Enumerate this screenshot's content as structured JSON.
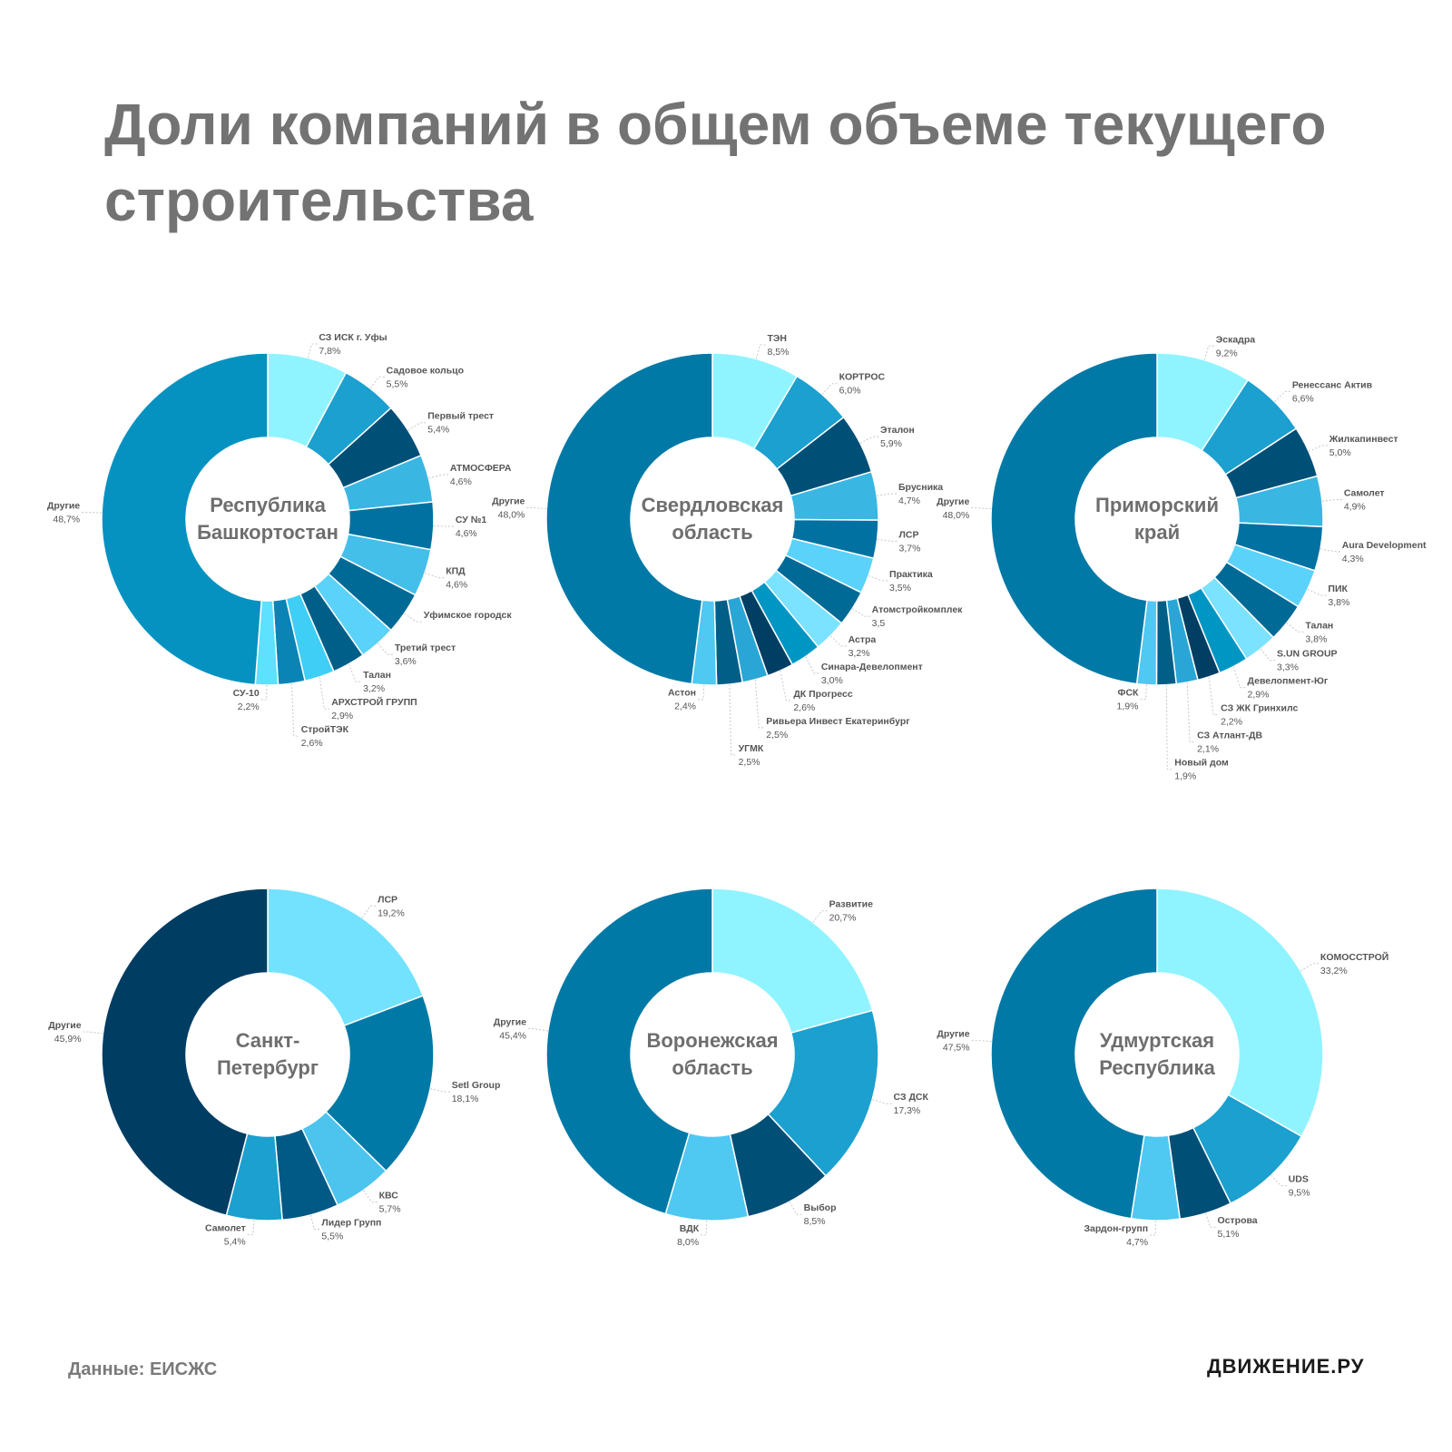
{
  "page": {
    "title": "Доли компаний в общем объеме текущего строительства",
    "source": "Данные: ЕИСЖС",
    "brand": "ДВИЖЕНИЕ.РУ"
  },
  "chart_data": [
    {
      "type": "pie",
      "title": "Республика Башкортостан",
      "slices": [
        {
          "label": "СЗ ИСК г. Уфы",
          "value": 7.8,
          "text": "7,8%",
          "color": "#8ff4ff"
        },
        {
          "label": "Садовое кольцо",
          "value": 5.5,
          "text": "5,5%",
          "color": "#1ba0cf"
        },
        {
          "label": "Первый трест",
          "value": 5.4,
          "text": "5,4%",
          "color": "#004f77"
        },
        {
          "label": "АТМОСФЕРА",
          "value": 4.6,
          "text": "4,6%",
          "color": "#3ab6e3"
        },
        {
          "label": "СУ №1",
          "value": 4.6,
          "text": "4,6%",
          "color": "#0071a0"
        },
        {
          "label": "КПД",
          "value": 4.6,
          "text": "4,6%",
          "color": "#44bfea"
        },
        {
          "label": "Уфимское городск",
          "value": 4.1,
          "text": "",
          "color": "#006a96"
        },
        {
          "label": "Третий трест",
          "value": 3.6,
          "text": "3,6%",
          "color": "#5bd2fa"
        },
        {
          "label": "Талан",
          "value": 3.2,
          "text": "3,2%",
          "color": "#005f89"
        },
        {
          "label": "АРХСТРОЙ ГРУПП",
          "value": 2.9,
          "text": "2,9%",
          "color": "#3fcef6"
        },
        {
          "label": "СтройТЭК",
          "value": 2.6,
          "text": "2,6%",
          "color": "#0a84b5"
        },
        {
          "label": "СУ-10",
          "value": 2.2,
          "text": "2,2%",
          "color": "#5ee0ff"
        },
        {
          "label": "Другие",
          "value": 48.7,
          "text": "48,7%",
          "color": "#0592c0"
        }
      ]
    },
    {
      "type": "pie",
      "title": "Свердловская область",
      "slices": [
        {
          "label": "ТЭН",
          "value": 8.5,
          "text": "8,5%",
          "color": "#8ff4ff"
        },
        {
          "label": "КОРТРОС",
          "value": 6.0,
          "text": "6,0%",
          "color": "#1ba0cf"
        },
        {
          "label": "Эталон",
          "value": 5.9,
          "text": "5,9%",
          "color": "#004f77"
        },
        {
          "label": "Брусника",
          "value": 4.7,
          "text": "4,7%",
          "color": "#3ab6e3"
        },
        {
          "label": "ЛСР",
          "value": 3.7,
          "text": "3,7%",
          "color": "#0071a0"
        },
        {
          "label": "Практика",
          "value": 3.5,
          "text": "3,5%",
          "color": "#5bd2fa"
        },
        {
          "label": "Атомстройкомплек",
          "value": 3.5,
          "text": "3,5",
          "color": "#006a96"
        },
        {
          "label": "Астра",
          "value": 3.2,
          "text": "3,2%",
          "color": "#7be2ff"
        },
        {
          "label": "Синара-Девелопмент",
          "value": 3.0,
          "text": "3,0%",
          "color": "#0096c4"
        },
        {
          "label": "ДК Прогресс",
          "value": 2.6,
          "text": "2,6%",
          "color": "#003f63"
        },
        {
          "label": "Ривьера Инвест Екатеринбург",
          "value": 2.5,
          "text": "2,5%",
          "color": "#2aa6d6"
        },
        {
          "label": "УГМК",
          "value": 2.5,
          "text": "2,5%",
          "color": "#005e87"
        },
        {
          "label": "Астон",
          "value": 2.4,
          "text": "2,4%",
          "color": "#4fc8f2"
        },
        {
          "label": "Другие",
          "value": 48.0,
          "text": "48,0%",
          "color": "#0079a6"
        }
      ]
    },
    {
      "type": "pie",
      "title": "Приморский край",
      "slices": [
        {
          "label": "Эскадра",
          "value": 9.2,
          "text": "9,2%",
          "color": "#8ff4ff"
        },
        {
          "label": "Ренессанс Актив",
          "value": 6.6,
          "text": "6,6%",
          "color": "#1ba0cf"
        },
        {
          "label": "Жилкапинвест",
          "value": 5.0,
          "text": "5,0%",
          "color": "#004f77"
        },
        {
          "label": "Самолет",
          "value": 4.9,
          "text": "4,9%",
          "color": "#3ab6e3"
        },
        {
          "label": "Aura Development",
          "value": 4.3,
          "text": "4,3%",
          "color": "#0071a0"
        },
        {
          "label": "ПИК",
          "value": 3.8,
          "text": "3,8%",
          "color": "#5bd2fa"
        },
        {
          "label": "Талан",
          "value": 3.8,
          "text": "3,8%",
          "color": "#006a96"
        },
        {
          "label": "S.UN GROUP",
          "value": 3.3,
          "text": "3,3%",
          "color": "#7be2ff"
        },
        {
          "label": "Девелопмент-Юг",
          "value": 2.9,
          "text": "2,9%",
          "color": "#0096c4"
        },
        {
          "label": "СЗ ЖК Гринхилс",
          "value": 2.2,
          "text": "2,2%",
          "color": "#003f63"
        },
        {
          "label": "СЗ Атлант-ДВ",
          "value": 2.1,
          "text": "2,1%",
          "color": "#2aa6d6"
        },
        {
          "label": "Новый дом",
          "value": 1.9,
          "text": "1,9%",
          "color": "#005e87"
        },
        {
          "label": "ФСК",
          "value": 1.9,
          "text": "1,9%",
          "color": "#4fc8f2"
        },
        {
          "label": "Другие",
          "value": 48.0,
          "text": "48,0%",
          "color": "#0079a6"
        }
      ]
    },
    {
      "type": "pie",
      "title": "Санкт-Петербург",
      "slices": [
        {
          "label": "ЛСР",
          "value": 19.2,
          "text": "19,2%",
          "color": "#73e2ff"
        },
        {
          "label": "Setl Group",
          "value": 18.1,
          "text": "18,1%",
          "color": "#0079a6"
        },
        {
          "label": "КВС",
          "value": 5.7,
          "text": "5,7%",
          "color": "#4cc4ee"
        },
        {
          "label": "Лидер Групп",
          "value": 5.5,
          "text": "5,5%",
          "color": "#005a85"
        },
        {
          "label": "Самолет",
          "value": 5.4,
          "text": "5,4%",
          "color": "#1ba0cf"
        },
        {
          "label": "Другие",
          "value": 45.9,
          "text": "45,9%",
          "color": "#003d63"
        }
      ]
    },
    {
      "type": "pie",
      "title": "Воронежская область",
      "slices": [
        {
          "label": "Развитие",
          "value": 20.7,
          "text": "20,7%",
          "color": "#8ff4ff"
        },
        {
          "label": "СЗ ДСК",
          "value": 17.3,
          "text": "17,3%",
          "color": "#1ba0cf"
        },
        {
          "label": "Выбор",
          "value": 8.5,
          "text": "8,5%",
          "color": "#004f77"
        },
        {
          "label": "ВДК",
          "value": 8.0,
          "text": "8,0%",
          "color": "#4fc8f2"
        },
        {
          "label": "Другие",
          "value": 45.4,
          "text": "45,4%",
          "color": "#0079a6"
        }
      ]
    },
    {
      "type": "pie",
      "title": "Удмуртская Республика",
      "slices": [
        {
          "label": "КОМОССТРОЙ",
          "value": 33.2,
          "text": "33,2%",
          "color": "#8ff4ff"
        },
        {
          "label": "UDS",
          "value": 9.5,
          "text": "9,5%",
          "color": "#1ba0cf"
        },
        {
          "label": "Острова",
          "value": 5.1,
          "text": "5,1%",
          "color": "#004f77"
        },
        {
          "label": "Зардон-групп",
          "value": 4.7,
          "text": "4,7%",
          "color": "#4fc8f2"
        },
        {
          "label": "Другие",
          "value": 47.5,
          "text": "47,5%",
          "color": "#0079a6"
        }
      ]
    }
  ]
}
